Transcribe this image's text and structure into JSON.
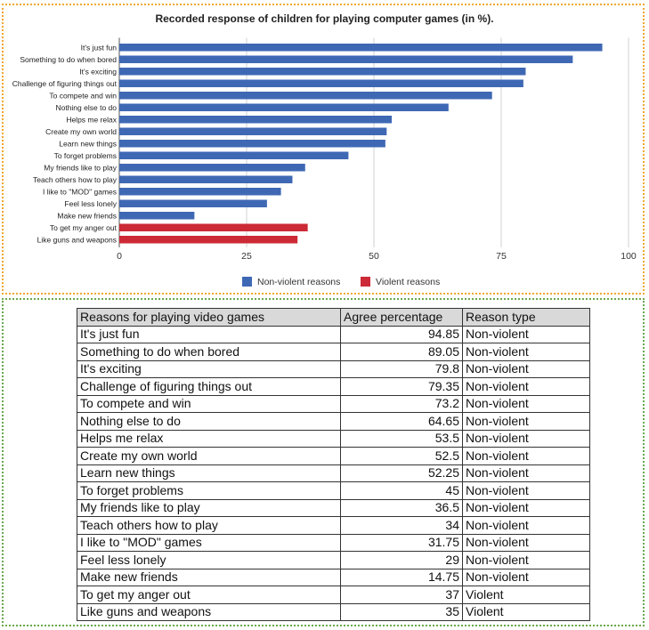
{
  "chart_data": {
    "type": "bar",
    "orientation": "horizontal",
    "title": "Recorded response of children for playing computer games (in %).",
    "xlabel": "",
    "ylabel": "",
    "xlim": [
      0,
      100
    ],
    "xticks": [
      "0",
      "25",
      "50",
      "75",
      "100"
    ],
    "grid": true,
    "legend_position": "bottom",
    "categories": [
      "It's just fun",
      "Something to do when bored",
      "It's exciting",
      "Challenge of figuring things out",
      "To compete and win",
      "Nothing else to do",
      "Helps me relax",
      "Create my own world",
      "Learn new things",
      "To forget problems",
      "My friends like to play",
      "Teach others how to play",
      "I like to \"MOD\" games",
      "Feel less lonely",
      "Make new friends",
      "To get my anger out",
      "Like guns and weapons"
    ],
    "values": [
      94.85,
      89.05,
      79.8,
      79.35,
      73.2,
      64.65,
      53.5,
      52.5,
      52.25,
      45,
      36.5,
      34,
      31.75,
      29,
      14.75,
      37,
      35
    ],
    "types": [
      "Non-violent",
      "Non-violent",
      "Non-violent",
      "Non-violent",
      "Non-violent",
      "Non-violent",
      "Non-violent",
      "Non-violent",
      "Non-violent",
      "Non-violent",
      "Non-violent",
      "Non-violent",
      "Non-violent",
      "Non-violent",
      "Non-violent",
      "Violent",
      "Violent"
    ],
    "legend": [
      {
        "name": "Non-violent reasons",
        "color": "#3f68b4"
      },
      {
        "name": "Violent reasons",
        "color": "#cc2a36"
      }
    ]
  },
  "table": {
    "headers": [
      "Reasons for playing video games",
      "Agree percentage",
      "Reason type"
    ],
    "rows": [
      [
        "It's just fun",
        "94.85",
        "Non-violent"
      ],
      [
        "Something to do when bored",
        "89.05",
        "Non-violent"
      ],
      [
        "It's exciting",
        "79.8",
        "Non-violent"
      ],
      [
        "Challenge of figuring things out",
        "79.35",
        "Non-violent"
      ],
      [
        "To compete and win",
        "73.2",
        "Non-violent"
      ],
      [
        "Nothing else to do",
        "64.65",
        "Non-violent"
      ],
      [
        "Helps me relax",
        "53.5",
        "Non-violent"
      ],
      [
        "Create my own world",
        "52.5",
        "Non-violent"
      ],
      [
        "Learn new things",
        "52.25",
        "Non-violent"
      ],
      [
        "To forget problems",
        "45",
        "Non-violent"
      ],
      [
        "My friends like to play",
        "36.5",
        "Non-violent"
      ],
      [
        "Teach others how to play",
        "34",
        "Non-violent"
      ],
      [
        "I like to \"MOD\" games",
        "31.75",
        "Non-violent"
      ],
      [
        "Feel less lonely",
        "29",
        "Non-violent"
      ],
      [
        "Make new friends",
        "14.75",
        "Non-violent"
      ],
      [
        "To get my anger out",
        "37",
        "Violent"
      ],
      [
        "Like guns and weapons",
        "35",
        "Violent"
      ]
    ]
  }
}
